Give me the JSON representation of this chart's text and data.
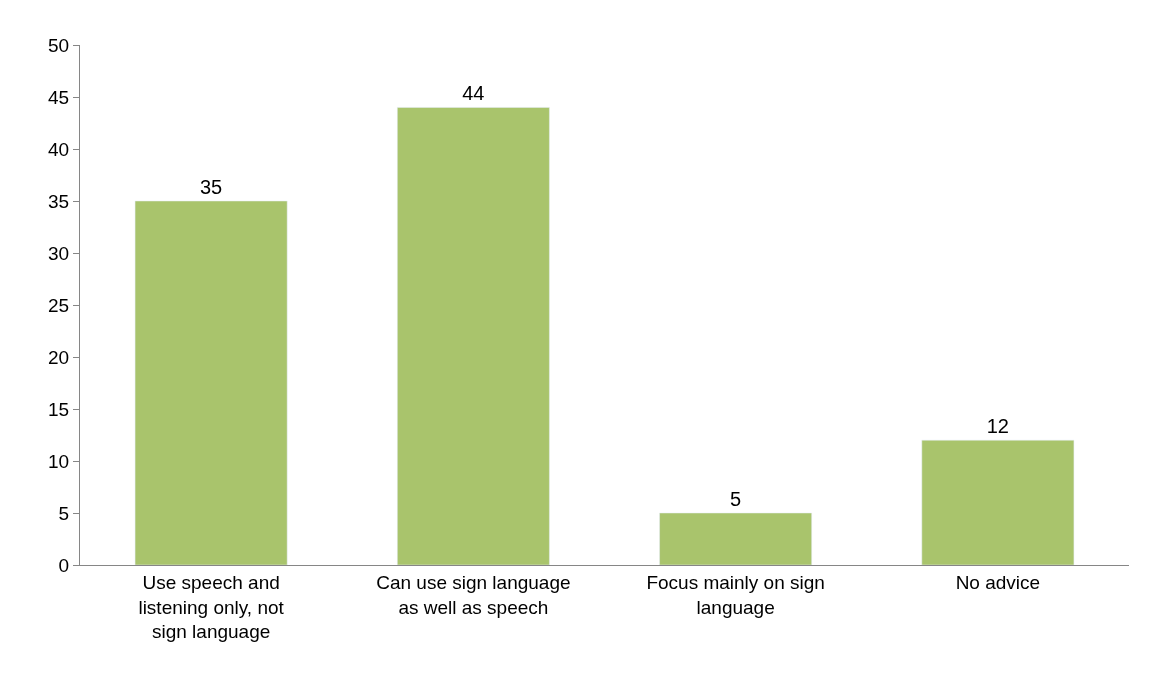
{
  "chart_data": {
    "type": "bar",
    "categories": [
      "Use speech and listening only, not sign language",
      "Can use sign language as well as speech",
      "Focus mainly on sign language",
      "No advice"
    ],
    "values": [
      35,
      44,
      5,
      12
    ],
    "color": "#a9c46c",
    "ylim": [
      0,
      50
    ],
    "yticks": [
      0,
      5,
      10,
      15,
      20,
      25,
      30,
      35,
      40,
      45,
      50
    ],
    "legend": false,
    "data_labels": true
  }
}
